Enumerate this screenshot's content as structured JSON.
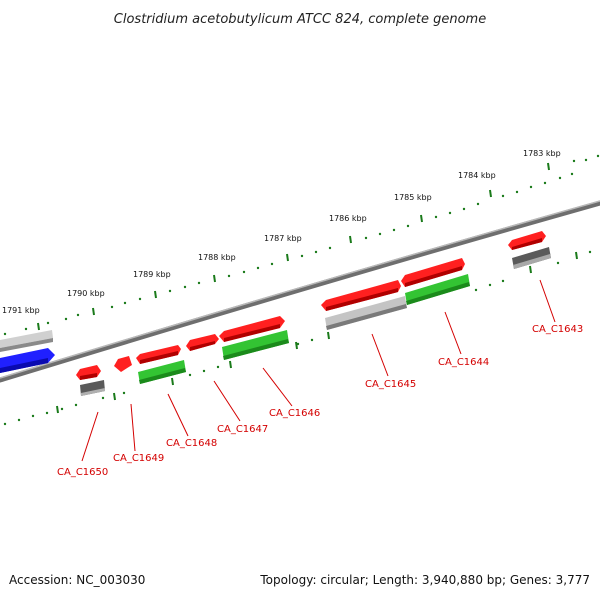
{
  "title": "Clostridium acetobutylicum ATCC 824, complete genome",
  "scale_labels": [
    "1783 kbp",
    "1784 kbp",
    "1785 kbp",
    "1786 kbp",
    "1787 kbp",
    "1788 kbp",
    "1789 kbp",
    "1790 kbp",
    "1791 kbp"
  ],
  "gene_labels": [
    "CA_C1643",
    "CA_C1644",
    "CA_C1645",
    "CA_C1646",
    "CA_C1647",
    "CA_C1648",
    "CA_C1649",
    "CA_C1650"
  ],
  "footer": {
    "accession": "Accession: NC_003030",
    "topology": "Topology: circular; Length: 3,940,880 bp; Genes: 3,777"
  },
  "colors": {
    "backbone": "#7a7a7a",
    "gene_red": "#ff1a1a",
    "gene_green": "#3cc63c",
    "gene_blue": "#1a1aff",
    "gene_gray_light": "#c8c8c8",
    "gene_gray_dark": "#606060",
    "scale_tick": "#1a7a1a",
    "label_text": "#d40000"
  }
}
